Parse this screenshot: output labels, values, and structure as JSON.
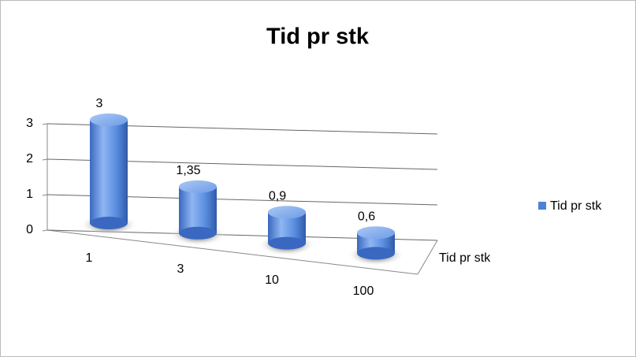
{
  "chart_data": {
    "type": "cylinder",
    "title": "Tid pr stk",
    "categories": [
      "1",
      "3",
      "10",
      "100"
    ],
    "series": [
      {
        "name": "Tid pr stk",
        "color": "#4f81d9",
        "values": [
          3,
          1.35,
          0.9,
          0.6
        ],
        "value_labels": [
          "3",
          "1,35",
          "0,9",
          "0,6"
        ]
      }
    ],
    "ylim": [
      0,
      3
    ],
    "yticks": [
      0,
      1,
      2,
      3
    ],
    "grid": true,
    "legend": "right"
  }
}
